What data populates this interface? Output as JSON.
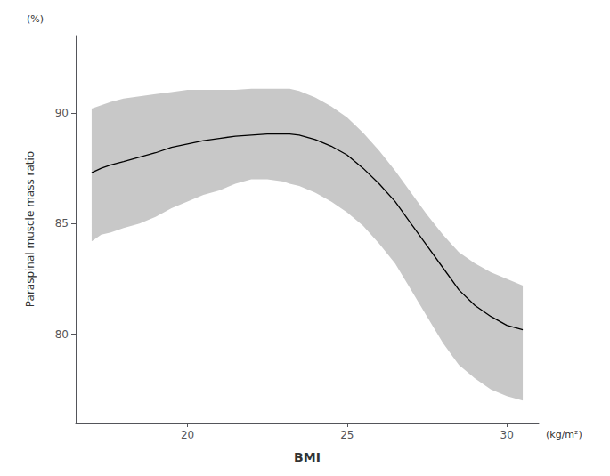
{
  "chart_data": {
    "type": "line",
    "xlabel": "BMI",
    "xlabel_unit": "(kg/m²)",
    "ylabel": "Paraspinal muscle mass ratio",
    "ylabel_unit": "(%)",
    "x": [
      17.0,
      17.3,
      17.6,
      18.0,
      18.5,
      19.0,
      19.5,
      20.0,
      20.5,
      21.0,
      21.5,
      22.0,
      22.5,
      23.0,
      23.2,
      23.5,
      24.0,
      24.5,
      25.0,
      25.5,
      26.0,
      26.5,
      27.0,
      27.5,
      28.0,
      28.5,
      29.0,
      29.5,
      30.0,
      30.5
    ],
    "series": [
      {
        "type": "band",
        "color": "#c8c8c8",
        "upper": [
          90.2,
          90.35,
          90.5,
          90.65,
          90.75,
          90.85,
          90.95,
          91.05,
          91.05,
          91.05,
          91.05,
          91.1,
          91.1,
          91.1,
          91.1,
          91.0,
          90.7,
          90.3,
          89.8,
          89.1,
          88.3,
          87.4,
          86.4,
          85.4,
          84.5,
          83.7,
          83.2,
          82.8,
          82.5,
          82.2
        ],
        "lower": [
          84.2,
          84.5,
          84.6,
          84.8,
          85.0,
          85.3,
          85.7,
          86.0,
          86.3,
          86.5,
          86.8,
          87.0,
          87.0,
          86.9,
          86.8,
          86.7,
          86.4,
          86.0,
          85.5,
          84.9,
          84.1,
          83.2,
          82.0,
          80.8,
          79.6,
          78.6,
          78.0,
          77.5,
          77.2,
          77.0
        ]
      },
      {
        "type": "line",
        "color": "#000000",
        "values": [
          87.3,
          87.5,
          87.65,
          87.8,
          88.0,
          88.2,
          88.45,
          88.6,
          88.75,
          88.85,
          88.95,
          89.0,
          89.05,
          89.05,
          89.05,
          89.0,
          88.8,
          88.5,
          88.1,
          87.5,
          86.8,
          86.0,
          85.0,
          84.0,
          83.0,
          82.0,
          81.3,
          80.8,
          80.4,
          80.2
        ]
      }
    ],
    "xlim": [
      16.5,
      31.0
    ],
    "ylim": [
      76.0,
      93.5
    ],
    "xticks": [
      20,
      25,
      30
    ],
    "yticks": [
      80,
      85,
      90
    ],
    "grid": false
  }
}
